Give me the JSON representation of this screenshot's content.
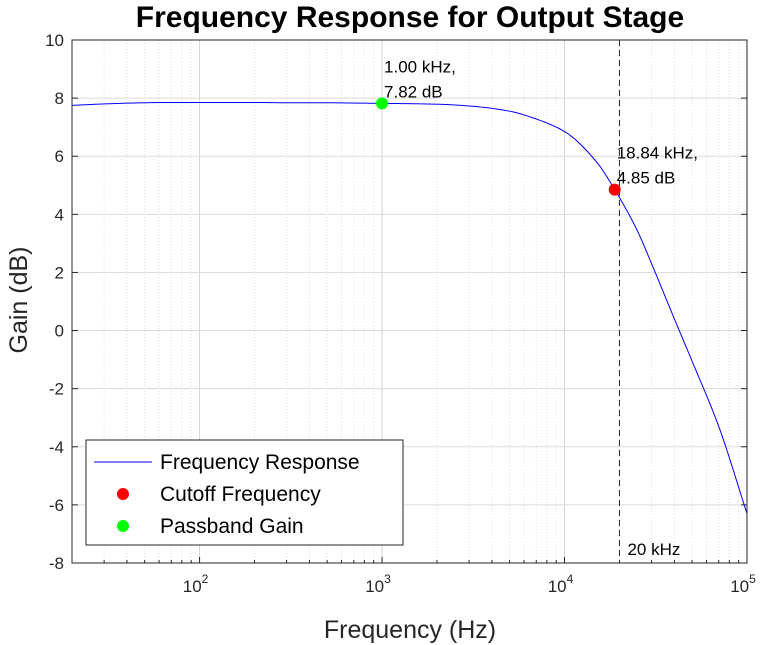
{
  "chart_data": {
    "type": "line",
    "title": "Frequency Response for Output Stage",
    "xlabel": "Frequency (Hz)",
    "ylabel": "Gain (dB)",
    "x_scale": "log",
    "xlim": [
      20,
      100000
    ],
    "ylim": [
      -8,
      10
    ],
    "grid": true,
    "legend_position": "bottom-left",
    "x_ticks": [
      {
        "value": 100,
        "base": "10",
        "exp": "2"
      },
      {
        "value": 1000,
        "base": "10",
        "exp": "3"
      },
      {
        "value": 10000,
        "base": "10",
        "exp": "4"
      },
      {
        "value": 100000,
        "base": "10",
        "exp": "5"
      }
    ],
    "y_ticks": [
      {
        "value": 10,
        "label": "10"
      },
      {
        "value": 8,
        "label": "8"
      },
      {
        "value": 6,
        "label": "6"
      },
      {
        "value": 4,
        "label": "4"
      },
      {
        "value": 2,
        "label": "2"
      },
      {
        "value": 0,
        "label": "0"
      },
      {
        "value": -2,
        "label": "-2"
      },
      {
        "value": -4,
        "label": "-4"
      },
      {
        "value": -6,
        "label": "-6"
      },
      {
        "value": -8,
        "label": "-8"
      }
    ],
    "series": [
      {
        "name": "Frequency Response",
        "color": "#0000ff",
        "x": [
          20,
          30,
          50,
          70,
          100,
          200,
          300,
          500,
          700,
          1000,
          2000,
          3000,
          5000,
          7000,
          10000,
          15000,
          18840,
          25000,
          30000,
          40000,
          50000,
          70000,
          100000
        ],
        "y": [
          7.75,
          7.8,
          7.84,
          7.85,
          7.85,
          7.85,
          7.84,
          7.84,
          7.83,
          7.82,
          7.79,
          7.73,
          7.55,
          7.28,
          6.85,
          5.8,
          4.85,
          3.45,
          2.3,
          0.4,
          -1.05,
          -3.3,
          -6.3
        ]
      }
    ],
    "markers": [
      {
        "name": "Cutoff Frequency",
        "color": "#ff0000",
        "x": 18840,
        "y": 4.85,
        "label_line1": "18.84 kHz,",
        "label_line2": "4.85 dB"
      },
      {
        "name": "Passband Gain",
        "color": "#00ff00",
        "x": 1000,
        "y": 7.82,
        "label_line1": "1.00 kHz,",
        "label_line2": "7.82 dB"
      }
    ],
    "reference_line": {
      "x": 20000,
      "label": "20 kHz",
      "style": "dashed",
      "color": "#262626"
    },
    "legend": [
      {
        "label": "Frequency Response",
        "type": "line",
        "color": "#0000ff"
      },
      {
        "label": "Cutoff Frequency",
        "type": "marker",
        "color": "#ff0000"
      },
      {
        "label": "Passband Gain",
        "type": "marker",
        "color": "#00ff00"
      }
    ]
  }
}
